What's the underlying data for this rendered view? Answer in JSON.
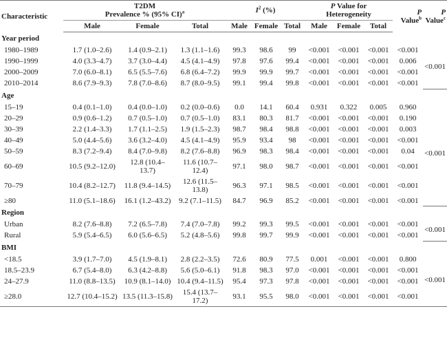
{
  "header": {
    "characteristic": "Characteristic",
    "prevalence": {
      "line1": "T2DM",
      "line2": "Prevalence % (95% CI)",
      "sup": "a"
    },
    "i2": {
      "symbol": "I",
      "sup": "2",
      "label": "(%)"
    },
    "heterogeneity": {
      "symbol": "P",
      "line1": "Value for",
      "line2": "Heterogeneity"
    },
    "p_b": {
      "symbol": "P",
      "label": "Value",
      "sup": "b"
    },
    "p_c": {
      "symbol": "P",
      "label": "Value",
      "sup": "c"
    },
    "subheaders": [
      "Male",
      "Female",
      "Total",
      "Male",
      "Female",
      "Total",
      "Male",
      "Female",
      "Total"
    ]
  },
  "sections": [
    {
      "label": "Year period",
      "p_overall": "<0.001",
      "rows": [
        [
          "1980–1989",
          "1.7 (1.0–2.6)",
          "1.4 (0.9–2.1)",
          "1.3 (1.1–1.6)",
          "99.3",
          "98.6",
          "99",
          "<0.001",
          "<0.001",
          "<0.001",
          "<0.001"
        ],
        [
          "1990–1999",
          "4.0 (3.3–4.7)",
          "3.7 (3.0–4.4)",
          "4.5 (4.1–4.9)",
          "97.8",
          "97.6",
          "99.4",
          "<0.001",
          "<0.001",
          "<0.001",
          "0.006"
        ],
        [
          "2000–2009",
          "7.0 (6.0–8.1)",
          "6.5 (5.5–7.6)",
          "6.8 (6.4–7.2)",
          "99.9",
          "99.9",
          "99.7",
          "<0.001",
          "<0.001",
          "<0.001",
          "<0.001"
        ],
        [
          "2010–2014",
          "8.6 (7.9–9.3)",
          "7.8 (7.0–8.6)",
          "8.7 (8.0–9.5)",
          "99.1",
          "99.4",
          "99.8",
          "<0.001",
          "<0.001",
          "<0.001",
          "<0.001"
        ]
      ]
    },
    {
      "label": "Age",
      "p_overall": "<0.001",
      "rows": [
        [
          "15–19",
          "0.4 (0.1–1.0)",
          "0.4 (0.0–1.0)",
          "0.2 (0.0–0.6)",
          "0.0",
          "14.1",
          "60.4",
          "0.931",
          "0.322",
          "0.005",
          "0.960"
        ],
        [
          "20–29",
          "0.9 (0.6–1.2)",
          "0.7 (0.5–1.0)",
          "0.7 (0.5–1.0)",
          "83.1",
          "80.3",
          "81.7",
          "<0.001",
          "<0.001",
          "<0.001",
          "0.190"
        ],
        [
          "30–39",
          "2.2 (1.4–3.3)",
          "1.7 (1.1–2.5)",
          "1.9 (1.5–2.3)",
          "98.7",
          "98.4",
          "98.8",
          "<0.001",
          "<0.001",
          "<0.001",
          "0.003"
        ],
        [
          "40–49",
          "5.0 (4.4–5.6)",
          "3.6 (3.2–4.0)",
          "4.5 (4.1–4.9)",
          "95.9",
          "93.4",
          "98",
          "<0.001",
          "<0.001",
          "<0.001",
          "<0.001"
        ],
        [
          "50–59",
          "8.3 (7.2–9.4)",
          "8.4 (7.0–9.8)",
          "8.2 (7.6–8.8)",
          "96.9",
          "98.3",
          "98.4",
          "<0.001",
          "<0.001",
          "<0.001",
          "0.04"
        ],
        [
          "60–69",
          "10.5 (9.2–12.0)",
          "12.8 (10.4–13.7)",
          "11.6 (10.7–12.4)",
          "97.1",
          "98.0",
          "98.7",
          "<0.001",
          "<0.001",
          "<0.001",
          "<0.001"
        ],
        [
          "70–79",
          "10.4 (8.2–12.7)",
          "11.8 (9.4–14.5)",
          "12.6 (11.5–13.8)",
          "96.3",
          "97.1",
          "98.5",
          "<0.001",
          "<0.001",
          "<0.001",
          "<0.001"
        ],
        [
          "≥80",
          "11.0 (5.1–18.6)",
          "16.1 (1.2–43.2)",
          "9.2 (7.1–11.5)",
          "84.7",
          "96.9",
          "85.2",
          "<0.001",
          "<0.001",
          "<0.001",
          "<0.001"
        ]
      ]
    },
    {
      "label": "Region",
      "p_overall": "<0.001",
      "rows": [
        [
          "Urban",
          "8.2 (7.6–8.8)",
          "7.2 (6.5–7.8)",
          "7.4 (7.0–7.8)",
          "99.2",
          "99.3",
          "99.5",
          "<0.001",
          "<0.001",
          "<0.001",
          "<0.001"
        ],
        [
          "Rural",
          "5.9 (5.4–6.5)",
          "6.0 (5.6–6.5)",
          "5.2 (4.8–5.6)",
          "99.8",
          "99.7",
          "99.9",
          "<0.001",
          "<0.001",
          "<0.001",
          "<0.001"
        ]
      ]
    },
    {
      "label": "BMI",
      "p_overall": "<0.001",
      "rows": [
        [
          "<18.5",
          "3.9 (1.7–7.0)",
          "4.5 (1.9–8.1)",
          "2.8 (2.2–3.5)",
          "72.6",
          "80.9",
          "77.5",
          "0.001",
          "<0.001",
          "<0.001",
          "0.800"
        ],
        [
          "18.5–23.9",
          "6.7 (5.4–8.0)",
          "6.3 (4.2–8.8)",
          "5.6 (5.0–6.1)",
          "91.8",
          "98.3",
          "97.0",
          "<0.001",
          "<0.001",
          "<0.001",
          "<0.001"
        ],
        [
          "24–27.9",
          "11.0 (8.8–13.5)",
          "10.9 (8.1–14.0)",
          "10.4 (9.4–11.5)",
          "95.4",
          "97.3",
          "97.8",
          "<0.001",
          "<0.001",
          "<0.001",
          "<0.001"
        ],
        [
          "≥28.0",
          "12.7 (10.4–15.2)",
          "13.5 (11.3–15.8)",
          "15.4 (13.7–17.2)",
          "93.1",
          "95.5",
          "98.0",
          "<0.001",
          "<0.001",
          "<0.001",
          "<0.001"
        ]
      ]
    }
  ]
}
